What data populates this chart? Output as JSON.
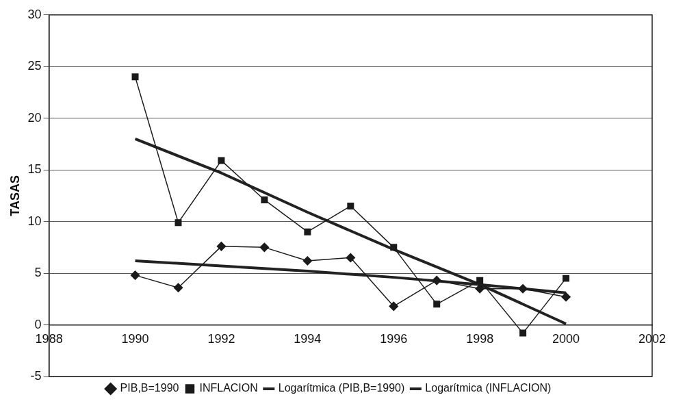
{
  "chart_data": {
    "type": "line",
    "ylabel": "TASAS",
    "xlim": [
      1988,
      2002
    ],
    "xticks": [
      1988,
      1990,
      1992,
      1994,
      1996,
      1998,
      2000,
      2002
    ],
    "ylim": [
      -5,
      30
    ],
    "yticks": [
      -5,
      0,
      5,
      10,
      15,
      20,
      25,
      30
    ],
    "grid": "y",
    "legend": "bottom",
    "line_style": "solid",
    "series": [
      {
        "name": "PIB,B=1990",
        "color": "#1a1a1a",
        "marker": "diamond",
        "x": [
          1990,
          1991,
          1992,
          1993,
          1994,
          1995,
          1996,
          1997,
          1998,
          1999,
          2000
        ],
        "values": [
          4.8,
          3.6,
          7.6,
          7.5,
          6.2,
          6.5,
          1.8,
          4.3,
          3.5,
          3.5,
          2.7
        ]
      },
      {
        "name": "INFLACION",
        "color": "#1a1a1a",
        "marker": "square",
        "x": [
          1990,
          1991,
          1992,
          1993,
          1994,
          1995,
          1996,
          1997,
          1998,
          1999,
          2000
        ],
        "values": [
          24,
          9.9,
          15.9,
          12.1,
          9.0,
          11.5,
          7.5,
          2.0,
          4.3,
          -0.8,
          4.5
        ]
      },
      {
        "name": "Logarítmica (PIB,B=1990)",
        "color": "#222222",
        "marker": "none",
        "x": [
          1990,
          1992,
          1994,
          1996,
          1998,
          2000
        ],
        "values": [
          6.2,
          5.7,
          5.2,
          4.6,
          3.9,
          3.1
        ]
      },
      {
        "name": "Logarítmica (INFLACION)",
        "color": "#222222",
        "marker": "none",
        "x": [
          1990,
          1992,
          1994,
          1996,
          1998,
          2000
        ],
        "values": [
          18.0,
          14.7,
          10.9,
          7.3,
          3.9,
          0.1
        ]
      }
    ]
  }
}
